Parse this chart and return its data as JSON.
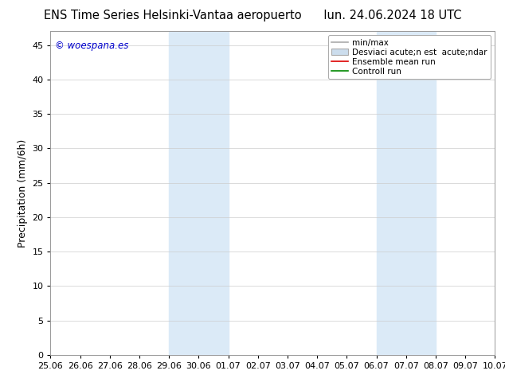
{
  "title_left": "ENS Time Series Helsinki-Vantaa aeropuerto",
  "title_right": "lun. 24.06.2024 18 UTC",
  "ylabel": "Precipitation (mm/6h)",
  "watermark": "© woespana.es",
  "watermark_color": "#0000cc",
  "ylim": [
    0,
    47
  ],
  "yticks": [
    0,
    5,
    10,
    15,
    20,
    25,
    30,
    35,
    40,
    45
  ],
  "xtick_labels": [
    "25.06",
    "26.06",
    "27.06",
    "28.06",
    "29.06",
    "30.06",
    "01.07",
    "02.07",
    "03.07",
    "04.07",
    "05.07",
    "06.07",
    "07.07",
    "08.07",
    "09.07",
    "10.07"
  ],
  "xmin": 0,
  "xmax": 15,
  "shaded_regions": [
    {
      "xstart": 4.0,
      "xend": 6.0,
      "color": "#dbeaf7"
    },
    {
      "xstart": 11.0,
      "xend": 13.0,
      "color": "#dbeaf7"
    }
  ],
  "legend_entries": [
    {
      "label": "min/max",
      "color": "#aaaaaa",
      "lw": 1.2,
      "style": "line"
    },
    {
      "label": "Desviaci acute;n est  acute;ndar",
      "color": "#ccdded",
      "style": "box"
    },
    {
      "label": "Ensemble mean run",
      "color": "#dd0000",
      "lw": 1.2,
      "style": "line"
    },
    {
      "label": "Controll run",
      "color": "#008800",
      "lw": 1.2,
      "style": "line"
    }
  ],
  "bg_color": "#ffffff",
  "grid_color": "#cccccc",
  "title_fontsize": 10.5,
  "label_fontsize": 9,
  "tick_fontsize": 8,
  "legend_fontsize": 7.5
}
